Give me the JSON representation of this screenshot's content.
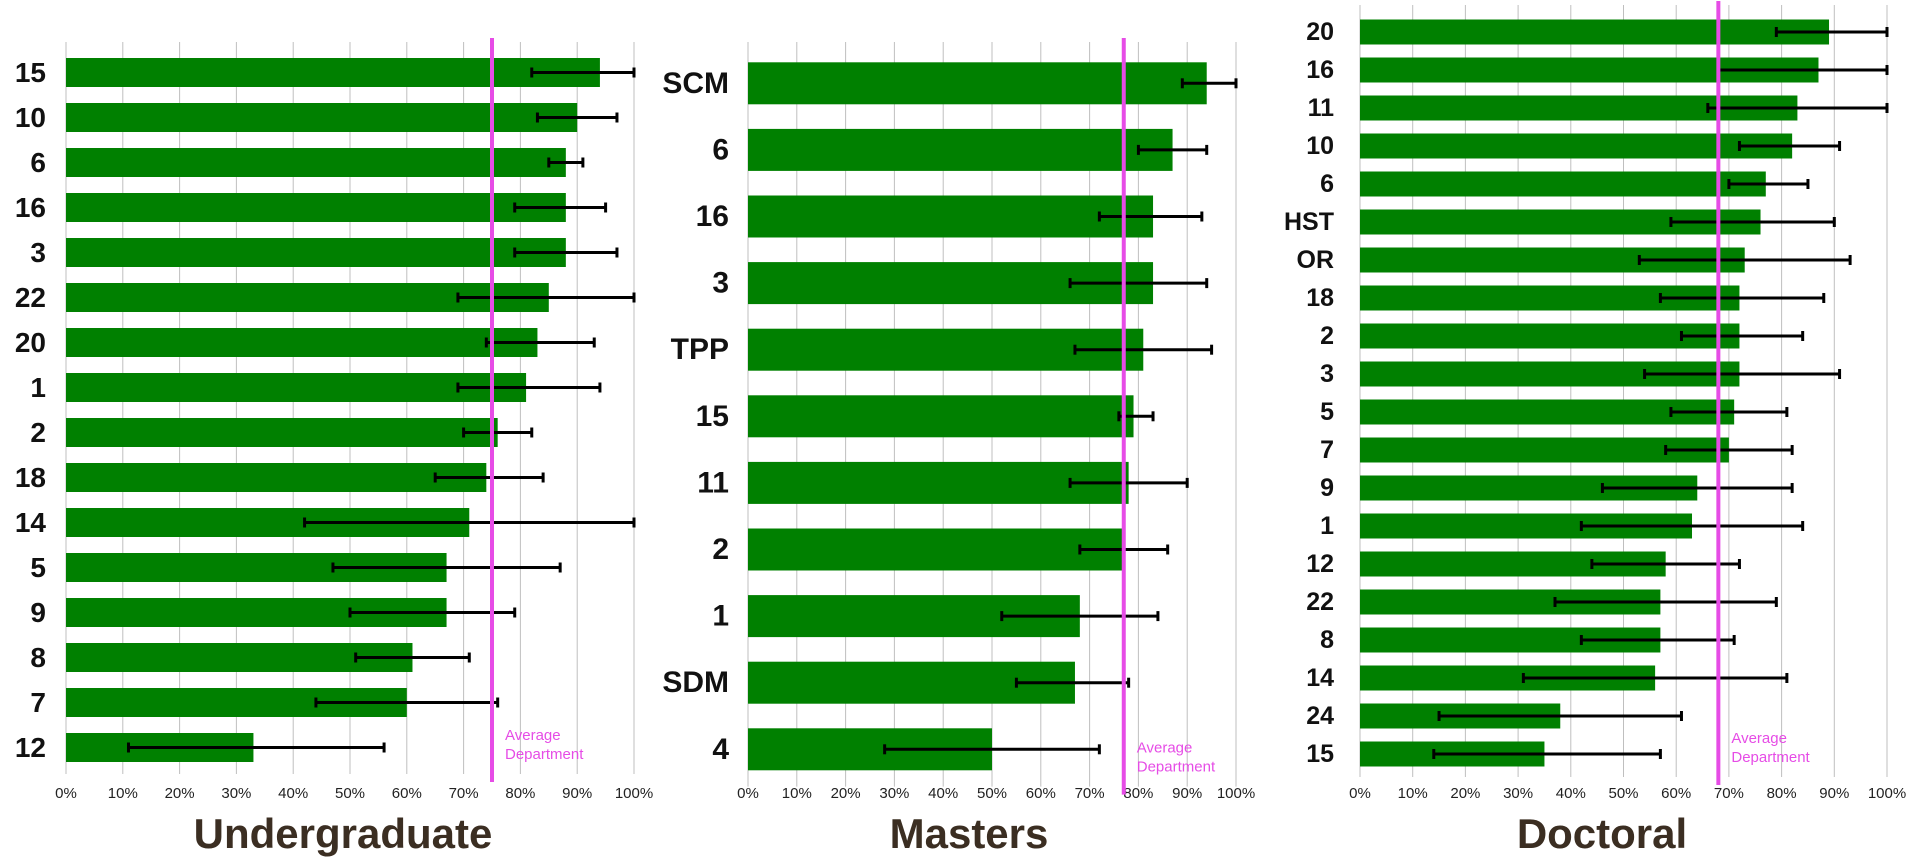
{
  "colors": {
    "bar": "#008000",
    "error_bar": "#000000",
    "average_line": "#e64ce6",
    "grid": "#bfbfbf",
    "title": "#3b2e22"
  },
  "chart_data": [
    {
      "type": "bar",
      "orientation": "horizontal",
      "title": "Undergraduate",
      "xlabel": "",
      "ylabel": "",
      "xlim": [
        0,
        100
      ],
      "x_ticks": [
        "0%",
        "10%",
        "20%",
        "30%",
        "40%",
        "50%",
        "60%",
        "70%",
        "80%",
        "90%",
        "100%"
      ],
      "grid": "vertical",
      "categories": [
        "15",
        "10",
        "6",
        "16",
        "3",
        "22",
        "20",
        "1",
        "2",
        "18",
        "14",
        "5",
        "9",
        "8",
        "7",
        "12"
      ],
      "values": [
        94,
        90,
        88,
        88,
        88,
        85,
        83,
        81,
        76,
        74,
        71,
        67,
        67,
        61,
        60,
        33
      ],
      "error_low": [
        82,
        83,
        85,
        79,
        79,
        69,
        74,
        69,
        70,
        65,
        42,
        47,
        50,
        51,
        44,
        11
      ],
      "error_high": [
        100,
        97,
        91,
        95,
        97,
        100,
        93,
        94,
        82,
        84,
        100,
        87,
        79,
        71,
        76,
        56
      ],
      "average": 75,
      "average_label": [
        "Average",
        "Department"
      ]
    },
    {
      "type": "bar",
      "orientation": "horizontal",
      "title": "Masters",
      "xlabel": "",
      "ylabel": "",
      "xlim": [
        0,
        100
      ],
      "x_ticks": [
        "0%",
        "10%",
        "20%",
        "30%",
        "40%",
        "50%",
        "60%",
        "70%",
        "80%",
        "90%",
        "100%"
      ],
      "grid": "vertical",
      "categories": [
        "SCM",
        "6",
        "16",
        "3",
        "TPP",
        "15",
        "11",
        "2",
        "1",
        "SDM",
        "4"
      ],
      "values": [
        94,
        87,
        83,
        83,
        81,
        79,
        78,
        77,
        68,
        67,
        50
      ],
      "error_low": [
        89,
        80,
        72,
        66,
        67,
        76,
        66,
        68,
        52,
        55,
        28
      ],
      "error_high": [
        100,
        94,
        93,
        94,
        95,
        83,
        90,
        86,
        84,
        78,
        72
      ],
      "average": 77,
      "average_label": [
        "Average",
        "Department"
      ]
    },
    {
      "type": "bar",
      "orientation": "horizontal",
      "title": "Doctoral",
      "xlabel": "",
      "ylabel": "",
      "xlim": [
        0,
        100
      ],
      "x_ticks": [
        "0%",
        "10%",
        "20%",
        "30%",
        "40%",
        "50%",
        "60%",
        "70%",
        "80%",
        "90%",
        "100%"
      ],
      "grid": "vertical",
      "categories": [
        "20",
        "16",
        "11",
        "10",
        "6",
        "HST",
        "OR",
        "18",
        "2",
        "3",
        "5",
        "7",
        "9",
        "1",
        "12",
        "22",
        "8",
        "14",
        "24",
        "15"
      ],
      "values": [
        89,
        87,
        83,
        82,
        77,
        76,
        73,
        72,
        72,
        72,
        71,
        70,
        64,
        63,
        58,
        57,
        57,
        56,
        38,
        35
      ],
      "error_low": [
        79,
        68,
        66,
        72,
        70,
        59,
        53,
        57,
        61,
        54,
        59,
        58,
        46,
        42,
        44,
        37,
        42,
        31,
        15,
        14
      ],
      "error_high": [
        100,
        100,
        100,
        91,
        85,
        90,
        93,
        88,
        84,
        91,
        81,
        82,
        82,
        84,
        72,
        79,
        71,
        81,
        61,
        57
      ],
      "average": 68,
      "average_label": [
        "Average",
        "Department"
      ]
    }
  ]
}
